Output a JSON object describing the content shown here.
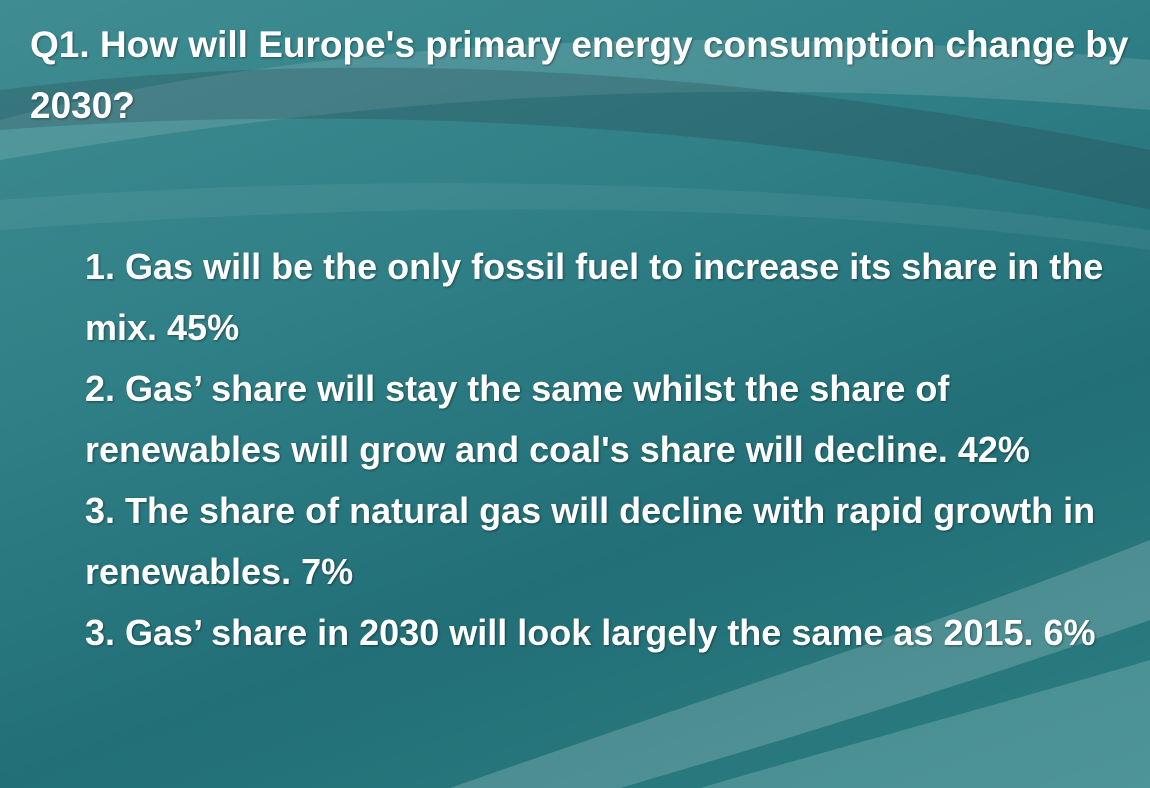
{
  "title": "Q1. How will Europe's primary energy consumption change by 2030?",
  "items": [
    "1. Gas will be the only fossil fuel to increase its share in the mix. 45%",
    "2. Gas’ share will stay the same whilst the share of renewables will grow and coal's share will decline. 42%",
    "3. The share of natural gas will decline with rapid growth in renewables. 7%",
    "3. Gas’ share in 2030 will look largely the same as 2015. 6%"
  ]
}
